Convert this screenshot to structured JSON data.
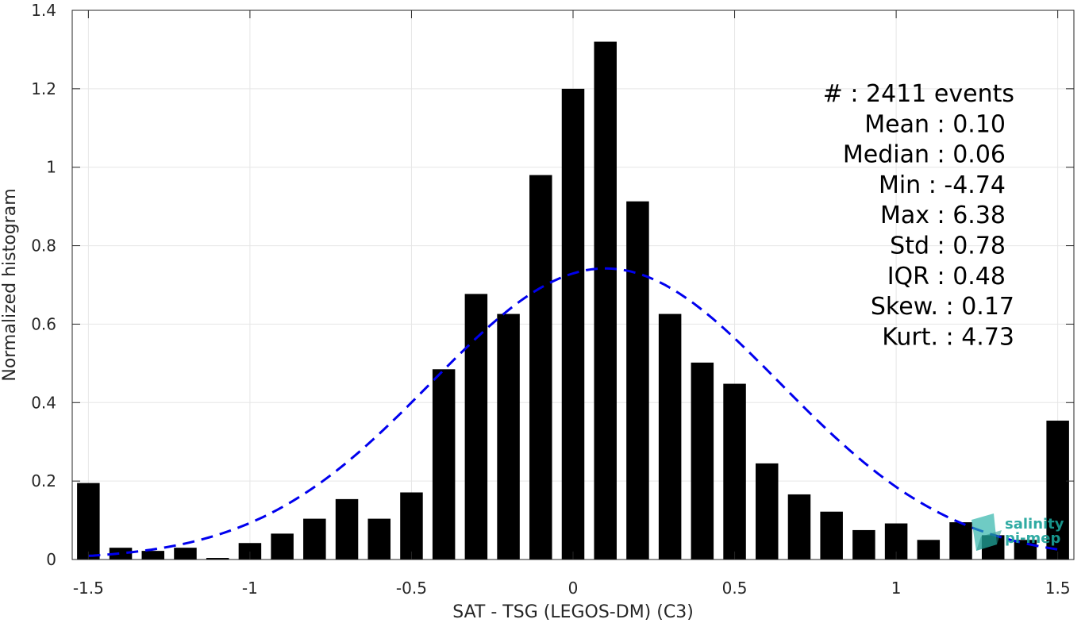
{
  "chart_data": {
    "type": "bar",
    "xlabel": "SAT - TSG (LEGOS-DM) (C3)",
    "ylabel": "Normalized histogram",
    "xlim": [
      -1.55,
      1.55
    ],
    "ylim": [
      0,
      1.4
    ],
    "x_ticks": [
      -1.5,
      -1,
      -0.5,
      0,
      0.5,
      1,
      1.5
    ],
    "x_tick_labels": [
      "-1.5",
      "-1",
      "-0.5",
      "0",
      "0.5",
      "1",
      "1.5"
    ],
    "y_ticks": [
      0,
      0.2,
      0.4,
      0.6,
      0.8,
      1,
      1.2,
      1.4
    ],
    "y_tick_labels": [
      "0",
      "0.2",
      "0.4",
      "0.6",
      "0.8",
      "1",
      "1.2",
      "1.4"
    ],
    "grid": true,
    "bar_color": "#000000",
    "bar_width": 0.07,
    "bars": {
      "x": [
        -1.5,
        -1.4,
        -1.3,
        -1.2,
        -1.1,
        -1.0,
        -0.9,
        -0.8,
        -0.7,
        -0.6,
        -0.5,
        -0.4,
        -0.3,
        -0.2,
        -0.1,
        0.0,
        0.1,
        0.2,
        0.3,
        0.4,
        0.5,
        0.6,
        0.7,
        0.8,
        0.9,
        1.0,
        1.1,
        1.2,
        1.3,
        1.4,
        1.5
      ],
      "values": [
        0.195,
        0.03,
        0.022,
        0.03,
        0.004,
        0.042,
        0.066,
        0.104,
        0.154,
        0.104,
        0.171,
        0.485,
        0.677,
        0.626,
        0.98,
        1.2,
        1.32,
        0.913,
        0.626,
        0.502,
        0.448,
        0.245,
        0.166,
        0.122,
        0.075,
        0.092,
        0.05,
        0.095,
        0.062,
        0.05,
        0.354
      ]
    },
    "fit": {
      "type": "normal",
      "style": "dashed",
      "color": "#0000ee",
      "mean": 0.1,
      "std": 0.54,
      "peak": 0.742,
      "x_range": [
        -1.5,
        1.5
      ]
    },
    "stats": [
      "#  : 2411 events",
      "Mean : 0.10",
      "Median : 0.06",
      "Min : -4.74",
      "Max : 6.38",
      "Std : 0.78",
      "IQR : 0.48",
      "Skew. : 0.17",
      "Kurt. : 4.73"
    ]
  },
  "logo": {
    "line1": "salinity",
    "line2": "pi-mep",
    "color": "#1aa39a"
  }
}
